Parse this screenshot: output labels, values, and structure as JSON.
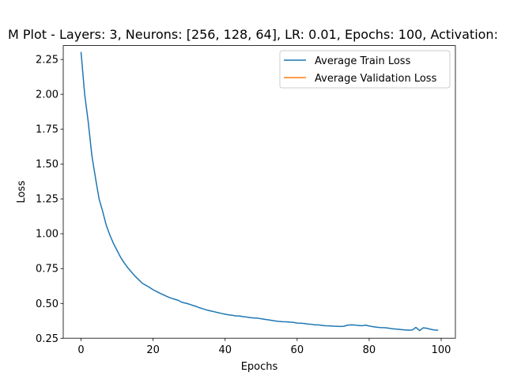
{
  "chart_data": {
    "type": "line",
    "title": "M Plot - Layers: 3, Neurons: [256, 128, 64], LR: 0.01, Epochs: 100, Activation:",
    "xlabel": "Epochs",
    "ylabel": "Loss",
    "xlim": [
      -4.95,
      103.95
    ],
    "ylim": [
      0.2505,
      2.3495
    ],
    "xticks": [
      0,
      20,
      40,
      60,
      80,
      100
    ],
    "xtick_labels": [
      "0",
      "20",
      "40",
      "60",
      "80",
      "100"
    ],
    "yticks": [
      0.25,
      0.5,
      0.75,
      1.0,
      1.25,
      1.5,
      1.75,
      2.0,
      2.25
    ],
    "ytick_labels": [
      "0.25",
      "0.50",
      "0.75",
      "1.00",
      "1.25",
      "1.50",
      "1.75",
      "2.00",
      "2.25"
    ],
    "grid": false,
    "legend_position": "upper right",
    "series": [
      {
        "name": "Average Train Loss",
        "color": "#1f77b4",
        "x": [
          0,
          1,
          2,
          3,
          4,
          5,
          6,
          7,
          8,
          9,
          10,
          11,
          12,
          13,
          14,
          15,
          16,
          17,
          18,
          19,
          20,
          21,
          22,
          23,
          24,
          25,
          26,
          27,
          28,
          29,
          30,
          31,
          32,
          33,
          34,
          35,
          36,
          37,
          38,
          39,
          40,
          41,
          42,
          43,
          44,
          45,
          46,
          47,
          48,
          49,
          50,
          51,
          52,
          53,
          54,
          55,
          56,
          57,
          58,
          59,
          60,
          61,
          62,
          63,
          64,
          65,
          66,
          67,
          68,
          69,
          70,
          71,
          72,
          73,
          74,
          75,
          76,
          77,
          78,
          79,
          80,
          81,
          82,
          83,
          84,
          85,
          86,
          87,
          88,
          89,
          90,
          91,
          92,
          93,
          94,
          95,
          96,
          97,
          98,
          99
        ],
        "y": [
          2.3,
          2.0,
          1.8,
          1.56,
          1.4,
          1.25,
          1.16,
          1.06,
          0.99,
          0.93,
          0.88,
          0.83,
          0.79,
          0.755,
          0.725,
          0.695,
          0.67,
          0.645,
          0.63,
          0.615,
          0.598,
          0.585,
          0.572,
          0.56,
          0.548,
          0.538,
          0.53,
          0.522,
          0.508,
          0.502,
          0.495,
          0.486,
          0.478,
          0.468,
          0.46,
          0.452,
          0.446,
          0.44,
          0.434,
          0.428,
          0.423,
          0.418,
          0.415,
          0.41,
          0.41,
          0.405,
          0.402,
          0.398,
          0.396,
          0.394,
          0.39,
          0.386,
          0.382,
          0.378,
          0.374,
          0.371,
          0.369,
          0.368,
          0.366,
          0.364,
          0.359,
          0.358,
          0.356,
          0.352,
          0.35,
          0.346,
          0.346,
          0.342,
          0.34,
          0.339,
          0.337,
          0.336,
          0.335,
          0.336,
          0.344,
          0.346,
          0.345,
          0.342,
          0.34,
          0.344,
          0.338,
          0.333,
          0.33,
          0.327,
          0.326,
          0.324,
          0.32,
          0.317,
          0.315,
          0.312,
          0.31,
          0.308,
          0.31,
          0.328,
          0.305,
          0.325,
          0.322,
          0.315,
          0.31,
          0.308
        ]
      },
      {
        "name": "Average Validation Loss",
        "color": "#ff7f0e",
        "x": [],
        "y": []
      }
    ]
  }
}
